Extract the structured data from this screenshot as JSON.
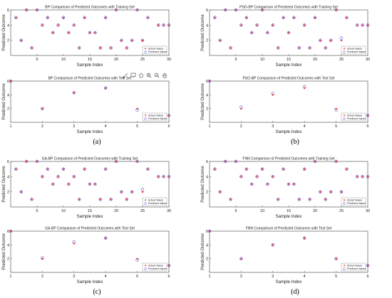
{
  "figure": {
    "captions": [
      "(a)",
      "(b)",
      "(c)",
      "(d)"
    ]
  },
  "colors": {
    "actual": "#e0202c",
    "predicted": "#5b4fd6",
    "axis": "#444444"
  },
  "toolbar_icons": [
    "brush-icon",
    "data-tip-icon",
    "pan-icon",
    "zoom-in-icon",
    "zoom-out-icon",
    "home-icon"
  ],
  "chart_data": [
    {
      "type": "scatter",
      "title": "BP Comparison of Predicted Outcomes with Training Set",
      "xlabel": "Sample Index",
      "ylabel": "Predicted Outcome",
      "xlim": [
        0,
        30
      ],
      "ylim": [
        0,
        6
      ],
      "xticks": [
        5,
        10,
        15,
        20,
        25,
        30
      ],
      "yticks": [
        2,
        4,
        6
      ],
      "legend": [
        "Actual Values",
        "Predicted Values"
      ],
      "legend_position": "bottom-right",
      "series": [
        {
          "name": "Actual Values",
          "x": [
            1,
            2,
            3,
            4,
            5,
            6,
            7,
            8,
            9,
            10,
            11,
            12,
            13,
            14,
            15,
            16,
            17,
            18,
            19,
            20,
            21,
            22,
            23,
            24,
            25,
            26,
            27,
            28,
            29,
            30
          ],
          "values": [
            5,
            2,
            6,
            1,
            6,
            4,
            5,
            3,
            4,
            5,
            3,
            4,
            1,
            5,
            3,
            3,
            1,
            5,
            1,
            6,
            2,
            1,
            2,
            6,
            2,
            5,
            1,
            4,
            4,
            4
          ]
        },
        {
          "name": "Predicted Values",
          "x": [
            1,
            2,
            3,
            4,
            5,
            6,
            7,
            8,
            9,
            10,
            11,
            12,
            13,
            14,
            15,
            16,
            17,
            18,
            19,
            20,
            21,
            22,
            23,
            24,
            25,
            26,
            27,
            28,
            29,
            30
          ],
          "values": [
            5,
            2,
            6,
            1,
            6,
            4,
            5,
            3,
            4,
            5,
            3,
            4,
            1,
            5,
            3,
            3,
            1,
            5,
            1,
            6,
            2,
            1,
            2,
            6,
            2,
            5,
            1,
            4,
            4,
            4
          ]
        }
      ]
    },
    {
      "type": "scatter",
      "title": "BP Comparison of Predicted Outcomes with Test Set",
      "xlabel": "Sample Index",
      "ylabel": "Predicted Outcome",
      "xlim": [
        1,
        6
      ],
      "ylim": [
        0,
        6
      ],
      "xticks": [
        1,
        2,
        3,
        4,
        5,
        6
      ],
      "yticks": [
        2,
        4,
        6
      ],
      "legend": [
        "Actual Values",
        "Predicted Values"
      ],
      "legend_position": "bottom-right",
      "series": [
        {
          "name": "Actual Values",
          "x": [
            1,
            2,
            3,
            4,
            5,
            6
          ],
          "values": [
            6,
            2,
            4.3,
            5,
            2,
            1
          ]
        },
        {
          "name": "Predicted Values",
          "x": [
            1,
            2,
            3,
            4,
            5,
            6
          ],
          "values": [
            6,
            2,
            4.3,
            5,
            1.8,
            1
          ]
        }
      ]
    },
    {
      "type": "scatter",
      "title": "PSO-BP Comparison of Predicted Outcomes with Training Set",
      "xlabel": "Sample Index",
      "ylabel": "Predicted Outcome",
      "xlim": [
        0,
        30
      ],
      "ylim": [
        0,
        6
      ],
      "xticks": [
        5,
        10,
        15,
        20,
        25,
        30
      ],
      "yticks": [
        2,
        4,
        6
      ],
      "legend": [
        "Actual Values",
        "Predicted Values"
      ],
      "legend_position": "bottom-right",
      "series": [
        {
          "name": "Actual Values",
          "x": [
            1,
            2,
            3,
            4,
            5,
            6,
            7,
            8,
            9,
            10,
            11,
            12,
            13,
            14,
            15,
            16,
            17,
            18,
            19,
            20,
            21,
            22,
            23,
            24,
            25,
            26,
            27,
            28,
            29,
            30
          ],
          "values": [
            5,
            2,
            6,
            1,
            6,
            4,
            5,
            3,
            4,
            6,
            3,
            4,
            1,
            5,
            3,
            5,
            1,
            4,
            1,
            5,
            2,
            1,
            2,
            6,
            2,
            5,
            1,
            4,
            4,
            4
          ]
        },
        {
          "name": "Predicted Values",
          "x": [
            1,
            2,
            3,
            4,
            5,
            6,
            7,
            8,
            9,
            10,
            11,
            12,
            13,
            14,
            15,
            16,
            17,
            18,
            19,
            20,
            21,
            22,
            23,
            24,
            25,
            26,
            27,
            28,
            29,
            30
          ],
          "values": [
            5,
            2,
            6,
            1,
            6,
            4,
            5,
            3,
            4,
            6,
            3,
            4,
            1,
            5,
            3,
            5,
            1,
            4,
            1,
            5,
            2,
            1,
            2,
            6,
            2.3,
            5,
            1,
            4,
            4,
            4
          ]
        }
      ]
    },
    {
      "type": "scatter",
      "title": "PSO-BP Comparison of Predicted Outcomes with Test Set",
      "xlabel": "Sample Index",
      "ylabel": "Predicted Outcome",
      "xlim": [
        1,
        6
      ],
      "ylim": [
        0,
        6
      ],
      "xticks": [
        1,
        2,
        3,
        4,
        5,
        6
      ],
      "yticks": [
        2,
        4,
        6
      ],
      "legend": [
        "Actual Values",
        "Predicted Values"
      ],
      "legend_position": "bottom-right",
      "series": [
        {
          "name": "Actual Values",
          "x": [
            1,
            2,
            3,
            4,
            5,
            6
          ],
          "values": [
            6,
            2,
            4,
            5,
            2,
            1
          ]
        },
        {
          "name": "Predicted Values",
          "x": [
            1,
            2,
            3,
            4,
            5,
            6
          ],
          "values": [
            6,
            2.2,
            4.2,
            5.2,
            1.8,
            1
          ]
        }
      ]
    },
    {
      "type": "scatter",
      "title": "GA-BP Comparison of Predicted Outcomes with Training Set",
      "xlabel": "Sample Index",
      "ylabel": "Predicted Outcome",
      "xlim": [
        0,
        30
      ],
      "ylim": [
        0,
        6
      ],
      "xticks": [
        5,
        10,
        15,
        20,
        25,
        30
      ],
      "yticks": [
        2,
        4,
        6
      ],
      "legend": [
        "Actual Values",
        "Predicted Values"
      ],
      "legend_position": "bottom-right",
      "series": [
        {
          "name": "Actual Values",
          "x": [
            1,
            2,
            3,
            4,
            5,
            6,
            7,
            8,
            9,
            10,
            11,
            12,
            13,
            14,
            15,
            16,
            17,
            18,
            19,
            20,
            21,
            22,
            23,
            24,
            25,
            26,
            27,
            28,
            29,
            30
          ],
          "values": [
            5,
            2,
            6,
            1,
            6,
            4,
            5,
            3,
            4,
            5,
            3,
            4,
            1,
            5,
            3,
            3,
            1,
            5,
            1,
            6,
            2,
            1,
            2,
            6,
            2,
            5,
            1,
            4,
            4,
            4
          ]
        },
        {
          "name": "Predicted Values",
          "x": [
            1,
            2,
            3,
            4,
            5,
            6,
            7,
            8,
            9,
            10,
            11,
            12,
            13,
            14,
            15,
            16,
            17,
            18,
            19,
            20,
            21,
            22,
            23,
            24,
            25,
            26,
            27,
            28,
            29,
            30
          ],
          "values": [
            5,
            2,
            6,
            1,
            6,
            4,
            5,
            3,
            4,
            5,
            3,
            4,
            1,
            5,
            3,
            3,
            1,
            5,
            1,
            6,
            2,
            1,
            2,
            6,
            2.3,
            5,
            1,
            4,
            4,
            4
          ]
        }
      ]
    },
    {
      "type": "scatter",
      "title": "GA-BP Comparison of Predicted Outcomes with Test Set",
      "xlabel": "Sample Index",
      "ylabel": "Predicted Outcome",
      "xlim": [
        1,
        6
      ],
      "ylim": [
        0,
        6
      ],
      "xticks": [
        1,
        2,
        3,
        4,
        5,
        6
      ],
      "yticks": [
        2,
        4,
        6
      ],
      "legend": [
        "Actual Values",
        "Predicted Values"
      ],
      "legend_position": "bottom-right",
      "series": [
        {
          "name": "Actual Values",
          "x": [
            1,
            2,
            3,
            4,
            5,
            6
          ],
          "values": [
            6,
            2,
            4.2,
            5,
            2,
            1
          ]
        },
        {
          "name": "Predicted Values",
          "x": [
            1,
            2,
            3,
            4,
            5,
            6
          ],
          "values": [
            6,
            2.1,
            4.4,
            5,
            1.8,
            1
          ]
        }
      ]
    },
    {
      "type": "scatter",
      "title": "FNN Comparison of Predicted Outcomes with Training Set",
      "xlabel": "Sample Index",
      "ylabel": "Predicted Outcome",
      "xlim": [
        0,
        30
      ],
      "ylim": [
        0,
        6
      ],
      "xticks": [
        5,
        10,
        15,
        20,
        25,
        30
      ],
      "yticks": [
        2,
        4,
        6
      ],
      "legend": [
        "Actual Values",
        "Predicted Values"
      ],
      "legend_position": "bottom-right",
      "series": [
        {
          "name": "Actual Values",
          "x": [
            1,
            2,
            3,
            4,
            5,
            6,
            7,
            8,
            9,
            10,
            11,
            12,
            13,
            14,
            15,
            16,
            17,
            18,
            19,
            20,
            21,
            22,
            23,
            24,
            25,
            26,
            27,
            28,
            29,
            30
          ],
          "values": [
            5,
            2,
            6,
            1,
            6,
            4,
            5,
            3,
            4,
            5,
            3,
            4,
            1,
            5,
            3,
            3,
            1,
            5,
            1,
            6,
            2,
            1,
            2,
            6,
            2,
            5,
            1,
            4,
            4,
            4
          ]
        },
        {
          "name": "Predicted Values",
          "x": [
            1,
            2,
            3,
            4,
            5,
            6,
            7,
            8,
            9,
            10,
            11,
            12,
            13,
            14,
            15,
            16,
            17,
            18,
            19,
            20,
            21,
            22,
            23,
            24,
            25,
            26,
            27,
            28,
            29,
            30
          ],
          "values": [
            5,
            2,
            6,
            1,
            6,
            4,
            5,
            3,
            4,
            5,
            3,
            4,
            1,
            5,
            3,
            3,
            1,
            5,
            1,
            6,
            2,
            1,
            2,
            6,
            2,
            5,
            1,
            4,
            4,
            4
          ]
        }
      ]
    },
    {
      "type": "scatter",
      "title": "FNN Comparison of Predicted Outcomes with Test Set",
      "xlabel": "Sample Index",
      "ylabel": "Predicted Outcome",
      "xlim": [
        1,
        6
      ],
      "ylim": [
        0,
        6
      ],
      "xticks": [
        1,
        2,
        3,
        4,
        5,
        6
      ],
      "yticks": [
        2,
        4,
        6
      ],
      "legend": [
        "Actual Values",
        "Predicted Values"
      ],
      "legend_position": "bottom-right",
      "series": [
        {
          "name": "Actual Values",
          "x": [
            1,
            2,
            3,
            4,
            5,
            6
          ],
          "values": [
            6,
            2,
            4,
            5,
            2,
            1
          ]
        },
        {
          "name": "Predicted Values",
          "x": [
            1,
            2,
            3,
            4,
            5,
            6
          ],
          "values": [
            6,
            2,
            4,
            5,
            2,
            1
          ]
        }
      ]
    }
  ]
}
